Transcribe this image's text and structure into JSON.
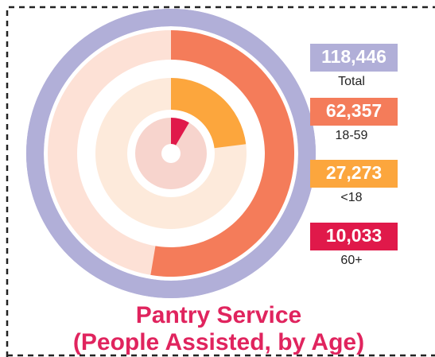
{
  "chart_data": {
    "type": "radial",
    "title": [
      "Pantry Service",
      "(People Assisted, by Age)"
    ],
    "categories": [
      "Total",
      "18-59",
      "<18",
      "60+"
    ],
    "values": [
      118446,
      62357,
      27273,
      10033
    ],
    "value_labels": [
      "118,446",
      "62,357",
      "27,273",
      "10,033"
    ],
    "colors": [
      "#b1afd8",
      "#f47c5a",
      "#fca63d",
      "#e0194a"
    ],
    "track_colors": [
      "#b1afd8",
      "#fde1d6",
      "#fdeadb",
      "#f7d4cd"
    ]
  }
}
